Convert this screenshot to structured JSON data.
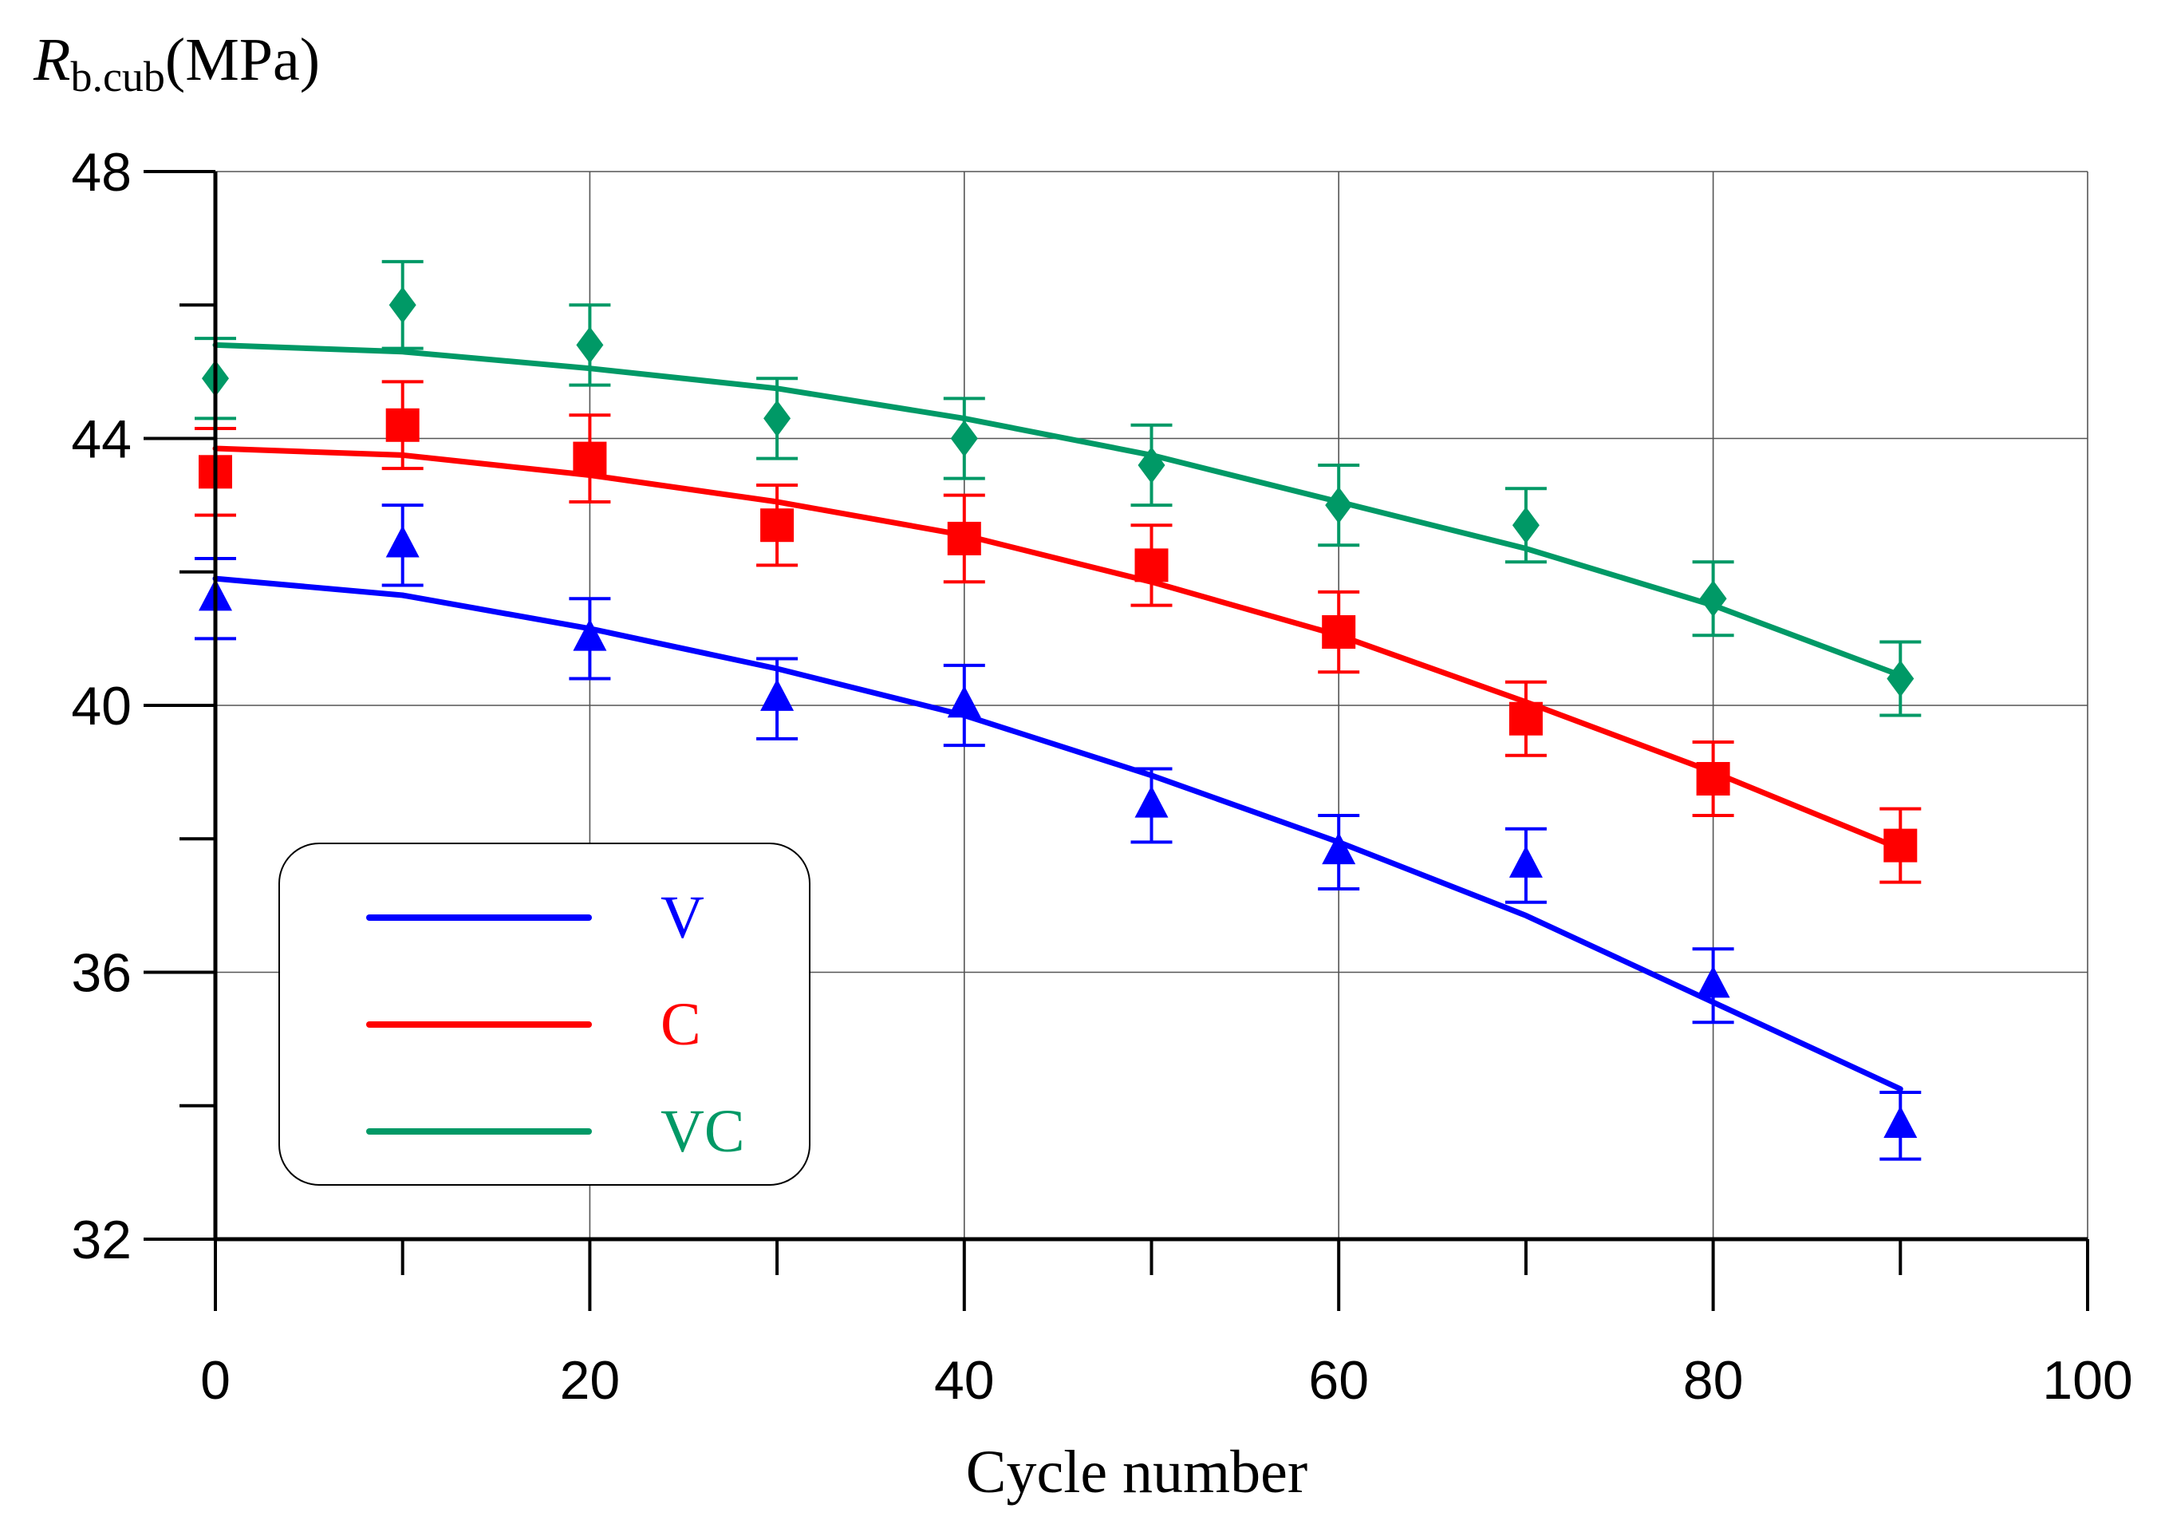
{
  "chart_data": {
    "type": "line",
    "title": "",
    "xlabel": "Cycle number",
    "ylabel_symbol": "R",
    "ylabel_subscript": "b.cub",
    "ylabel_unit": "(MPa)",
    "xlim": [
      0,
      100
    ],
    "ylim": [
      32,
      48
    ],
    "x_ticks": [
      0,
      20,
      40,
      60,
      80,
      100
    ],
    "x_tick_labels": [
      "0",
      "20",
      "40",
      "60",
      "80",
      "100"
    ],
    "x_minor_ticks": [
      10,
      30,
      50,
      70,
      90
    ],
    "y_ticks": [
      32,
      36,
      40,
      44,
      48
    ],
    "y_tick_labels": [
      "32",
      "36",
      "40",
      "44",
      "48"
    ],
    "y_minor_ticks": [
      34,
      38,
      42,
      46
    ],
    "grid": true,
    "legend_position": "bottom-left",
    "x": [
      0,
      10,
      20,
      30,
      40,
      50,
      60,
      70,
      80,
      90
    ],
    "series": [
      {
        "name": "V",
        "color": "#0000ff",
        "marker": "triangle",
        "values": [
          41.6,
          42.4,
          41.0,
          40.1,
          40.0,
          38.5,
          37.8,
          37.6,
          35.8,
          33.7
        ],
        "errors": [
          0.6,
          0.6,
          0.6,
          0.6,
          0.6,
          0.55,
          0.55,
          0.55,
          0.55,
          0.5
        ],
        "fit": [
          41.9,
          41.65,
          41.15,
          40.55,
          39.85,
          38.95,
          37.95,
          36.85,
          35.55,
          34.25
        ]
      },
      {
        "name": "C",
        "color": "#ff0000",
        "marker": "square",
        "values": [
          43.5,
          44.2,
          43.7,
          42.7,
          42.5,
          42.1,
          41.1,
          39.8,
          38.9,
          37.9
        ],
        "errors": [
          0.65,
          0.65,
          0.65,
          0.6,
          0.65,
          0.6,
          0.6,
          0.55,
          0.55,
          0.55
        ],
        "fit": [
          43.85,
          43.75,
          43.45,
          43.05,
          42.55,
          41.85,
          41.05,
          40.05,
          39.0,
          37.85
        ]
      },
      {
        "name": "VC",
        "color": "#009966",
        "marker": "diamond",
        "values": [
          44.9,
          46.0,
          45.4,
          44.3,
          44.0,
          43.6,
          43.0,
          42.7,
          41.6,
          40.4
        ],
        "errors": [
          0.6,
          0.65,
          0.6,
          0.6,
          0.6,
          0.6,
          0.6,
          0.55,
          0.55,
          0.55
        ],
        "fit": [
          45.4,
          45.3,
          45.05,
          44.75,
          44.3,
          43.75,
          43.05,
          42.35,
          41.5,
          40.45
        ]
      }
    ]
  }
}
